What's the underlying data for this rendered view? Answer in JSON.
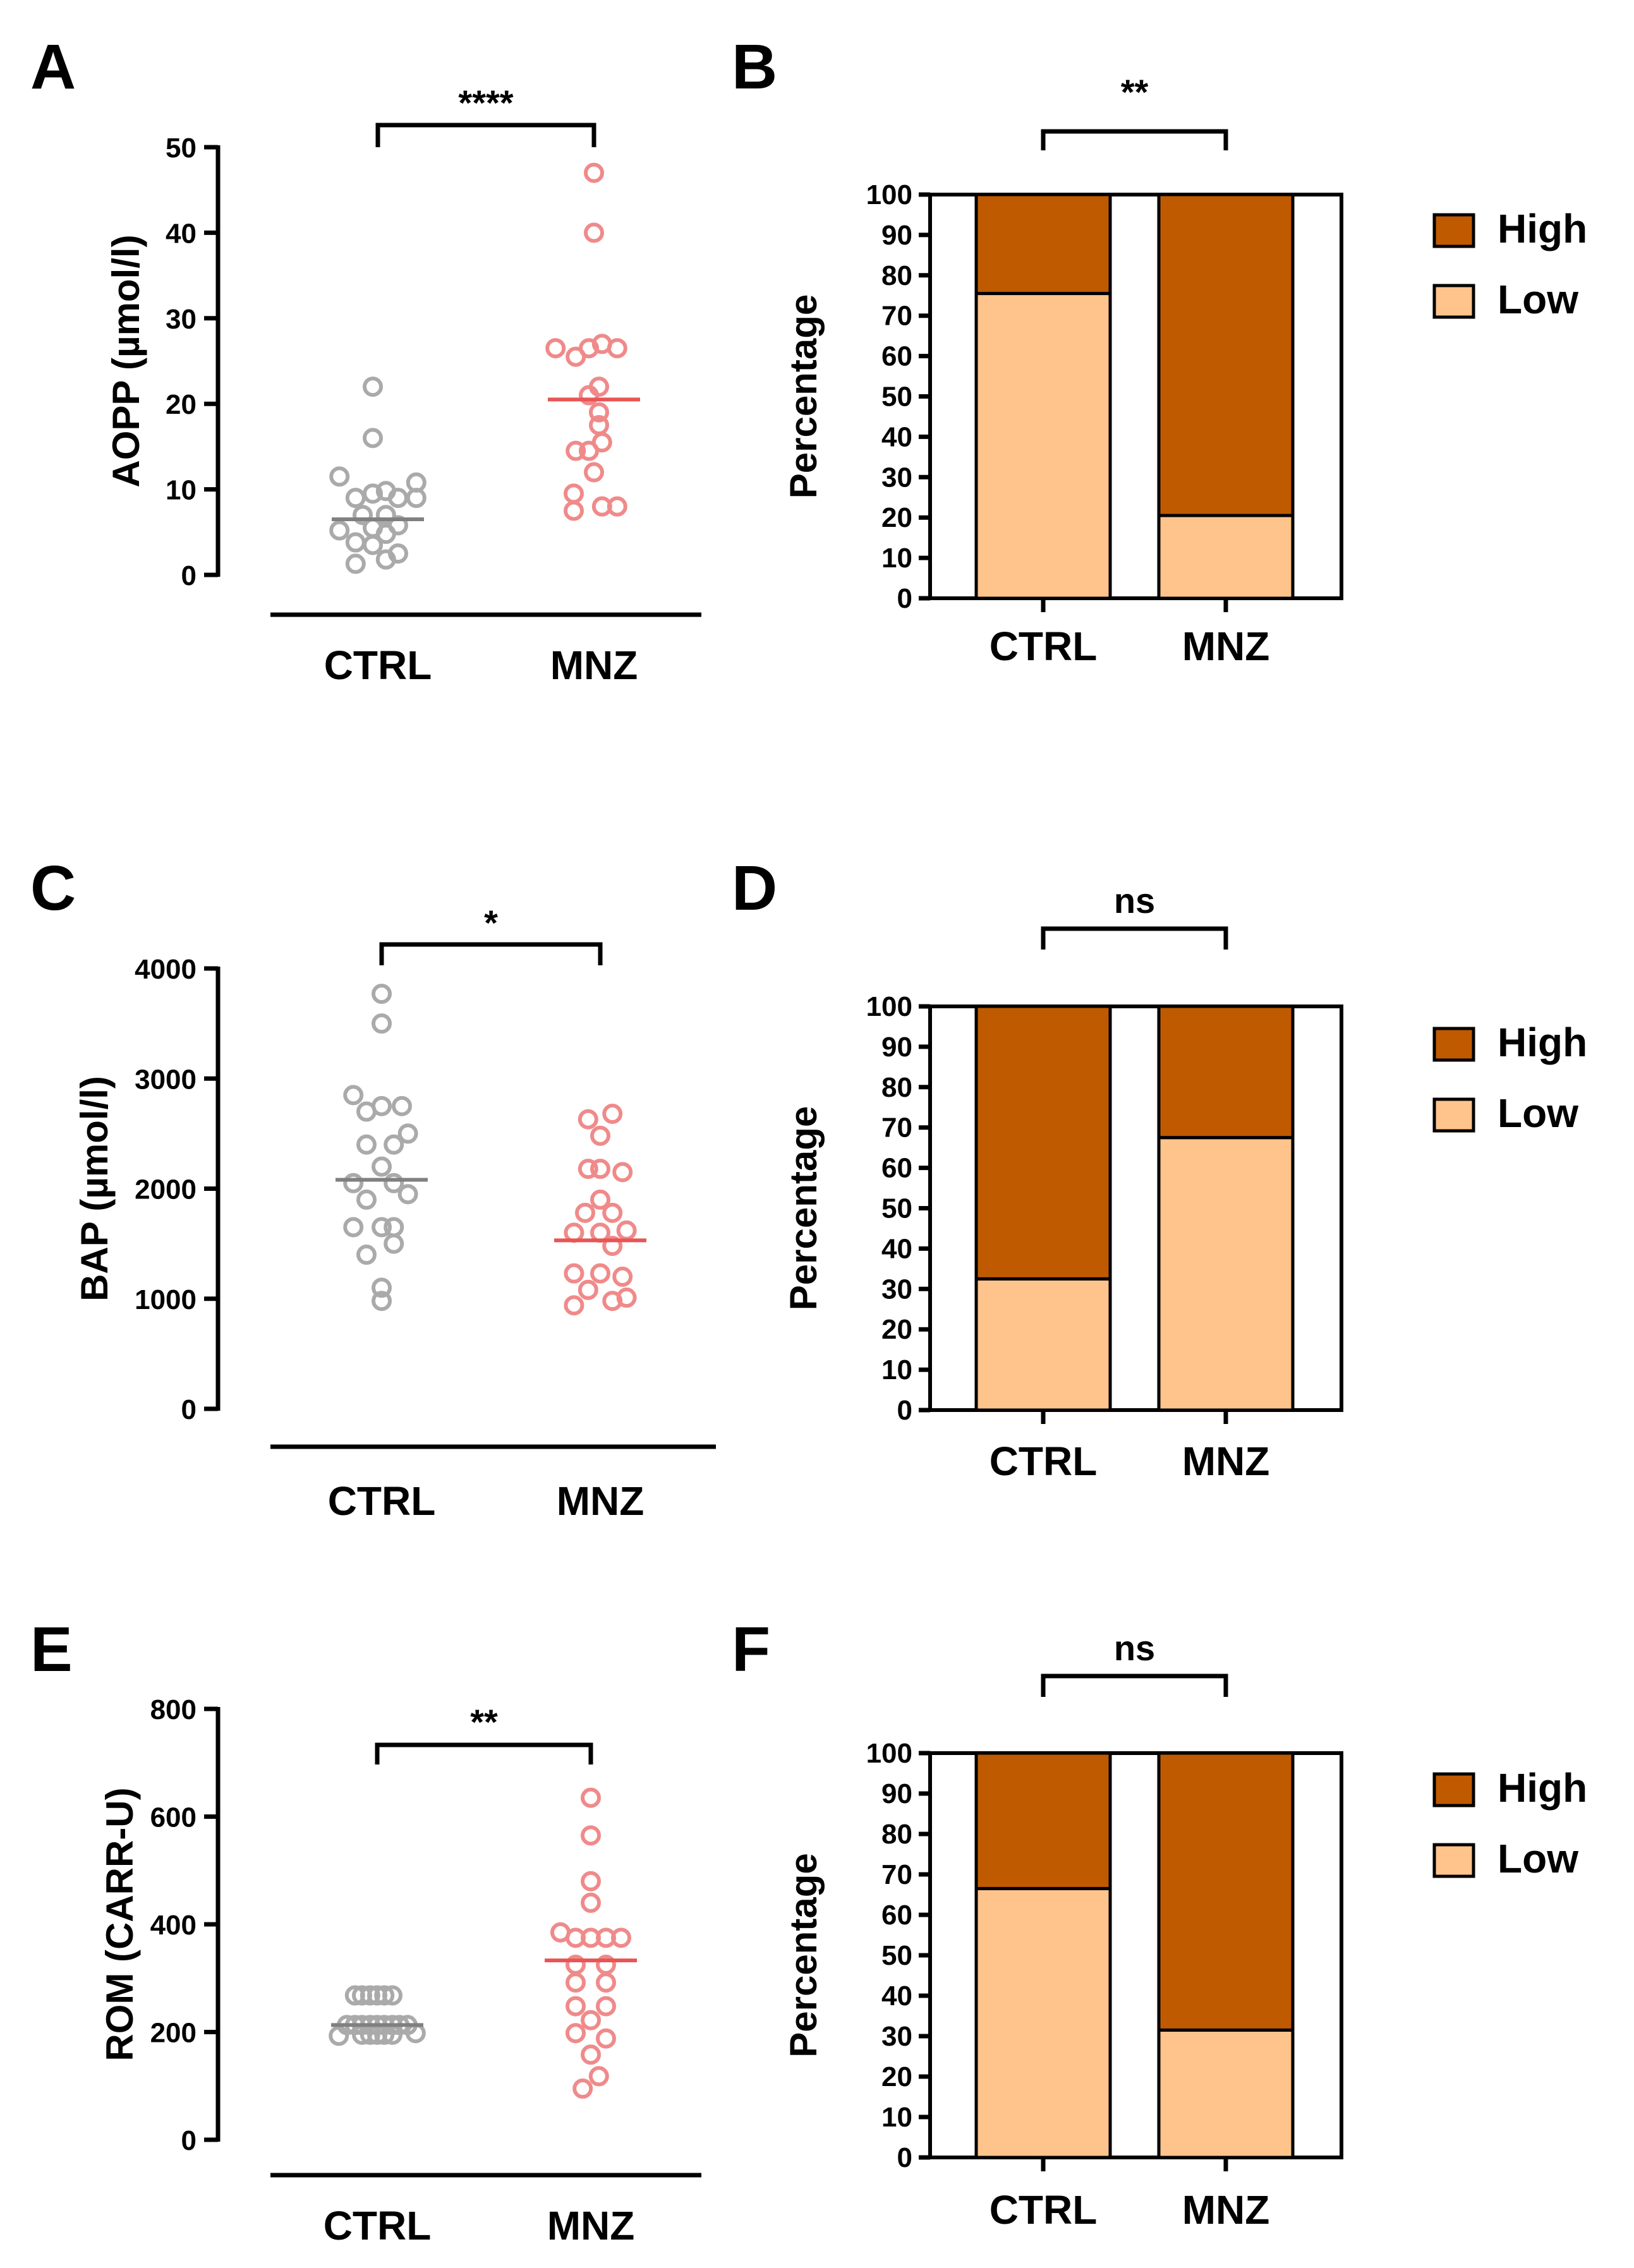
{
  "colors": {
    "ctrl_point": "#aaaaaa",
    "ctrl_median": "#808080",
    "mnz_point": "#f08a8a",
    "mnz_median": "#e85555",
    "high": "#bf5a00",
    "low": "#fec48c"
  },
  "chart_data": [
    {
      "panel": "A",
      "type": "scatter",
      "ylabel": "AOPP (µmol/l)",
      "ylim": [
        0,
        50
      ],
      "yticks": [
        "0",
        "10",
        "20",
        "30",
        "40",
        "50"
      ],
      "categories": [
        "CTRL",
        "MNZ"
      ],
      "significance": "****",
      "series": [
        {
          "name": "CTRL",
          "median": 6.5,
          "points": [
            [
              -0.38,
              5.2
            ],
            [
              -0.38,
              11.5
            ],
            [
              -0.22,
              1.3
            ],
            [
              -0.22,
              3.8
            ],
            [
              -0.22,
              9.0
            ],
            [
              -0.05,
              22.0
            ],
            [
              -0.05,
              16.0
            ],
            [
              -0.05,
              5.5
            ],
            [
              -0.05,
              9.5
            ],
            [
              -0.05,
              3.5
            ],
            [
              0.08,
              1.8
            ],
            [
              0.08,
              4.8
            ],
            [
              0.08,
              7.0
            ],
            [
              0.08,
              9.8
            ],
            [
              0.2,
              2.5
            ],
            [
              0.2,
              5.8
            ],
            [
              0.2,
              9.0
            ],
            [
              0.38,
              9.0
            ],
            [
              0.38,
              10.8
            ],
            [
              -0.15,
              7.0
            ]
          ]
        },
        {
          "name": "MNZ",
          "median": 20.5,
          "points": [
            [
              -0.38,
              26.5
            ],
            [
              -0.18,
              25.5
            ],
            [
              -0.05,
              26.5
            ],
            [
              0.08,
              27.0
            ],
            [
              0.23,
              26.5
            ],
            [
              0.0,
              47.0
            ],
            [
              0.0,
              40.0
            ],
            [
              -0.18,
              14.5
            ],
            [
              -0.05,
              14.5
            ],
            [
              0.08,
              15.5
            ],
            [
              0.0,
              12.0
            ],
            [
              0.05,
              17.5
            ],
            [
              -0.05,
              21.0
            ],
            [
              0.05,
              22.0
            ],
            [
              -0.2,
              9.5
            ],
            [
              -0.2,
              7.5
            ],
            [
              0.08,
              8.0
            ],
            [
              0.23,
              8.0
            ],
            [
              0.05,
              19.0
            ]
          ]
        }
      ]
    },
    {
      "panel": "B",
      "type": "bar",
      "stacked": true,
      "ylabel": "Percentage",
      "ylim": [
        0,
        100
      ],
      "yticks": [
        "0",
        "10",
        "20",
        "30",
        "40",
        "50",
        "60",
        "70",
        "80",
        "90",
        "100"
      ],
      "categories": [
        "CTRL",
        "MNZ"
      ],
      "significance": "**",
      "series": [
        {
          "name": "Low",
          "values": [
            75.5,
            20.5
          ]
        },
        {
          "name": "High",
          "values": [
            24.5,
            79.5
          ]
        }
      ],
      "legend": [
        "High",
        "Low"
      ]
    },
    {
      "panel": "C",
      "type": "scatter",
      "ylabel": "BAP (µmol/l)",
      "ylim": [
        0,
        4000
      ],
      "yticks": [
        "0",
        "1000",
        "2000",
        "3000",
        "4000"
      ],
      "categories": [
        "CTRL",
        "MNZ"
      ],
      "significance": "*",
      "series": [
        {
          "name": "CTRL",
          "median": 2080,
          "points": [
            [
              0.0,
              3770
            ],
            [
              0.0,
              3500
            ],
            [
              -0.28,
              2850
            ],
            [
              0.0,
              2750
            ],
            [
              0.2,
              2750
            ],
            [
              -0.15,
              2700
            ],
            [
              0.26,
              2500
            ],
            [
              -0.15,
              2400
            ],
            [
              0.12,
              2400
            ],
            [
              0.0,
              2200
            ],
            [
              -0.28,
              2050
            ],
            [
              0.12,
              2050
            ],
            [
              0.26,
              1950
            ],
            [
              -0.15,
              1900
            ],
            [
              0.0,
              1650
            ],
            [
              -0.28,
              1650
            ],
            [
              0.12,
              1650
            ],
            [
              -0.15,
              1400
            ],
            [
              0.12,
              1500
            ],
            [
              0.0,
              1100
            ],
            [
              0.0,
              980
            ]
          ]
        },
        {
          "name": "MNZ",
          "median": 1530,
          "points": [
            [
              -0.12,
              2630
            ],
            [
              0.12,
              2680
            ],
            [
              0.0,
              2480
            ],
            [
              -0.12,
              2180
            ],
            [
              0.0,
              2180
            ],
            [
              0.22,
              2150
            ],
            [
              0.0,
              1900
            ],
            [
              -0.15,
              1780
            ],
            [
              0.12,
              1780
            ],
            [
              0.26,
              1620
            ],
            [
              -0.26,
              1600
            ],
            [
              0.0,
              1600
            ],
            [
              0.12,
              1480
            ],
            [
              -0.26,
              1230
            ],
            [
              0.0,
              1230
            ],
            [
              0.22,
              1200
            ],
            [
              -0.26,
              940
            ],
            [
              -0.12,
              1080
            ],
            [
              0.12,
              980
            ],
            [
              0.26,
              1010
            ]
          ]
        }
      ]
    },
    {
      "panel": "D",
      "type": "bar",
      "stacked": true,
      "ylabel": "Percentage",
      "ylim": [
        0,
        100
      ],
      "yticks": [
        "0",
        "10",
        "20",
        "30",
        "40",
        "50",
        "60",
        "70",
        "80",
        "90",
        "100"
      ],
      "categories": [
        "CTRL",
        "MNZ"
      ],
      "significance": "ns",
      "series": [
        {
          "name": "Low",
          "values": [
            32.5,
            67.5
          ]
        },
        {
          "name": "High",
          "values": [
            67.5,
            32.5
          ]
        }
      ],
      "legend": [
        "High",
        "Low"
      ]
    },
    {
      "panel": "E",
      "type": "scatter",
      "ylabel": "ROM (CARR-U)",
      "ylim": [
        0,
        800
      ],
      "yticks": [
        "0",
        "200",
        "400",
        "600",
        "800"
      ],
      "categories": [
        "CTRL",
        "MNZ"
      ],
      "significance": "**",
      "series": [
        {
          "name": "CTRL",
          "median": 213,
          "points": [
            [
              -0.38,
              193
            ],
            [
              -0.3,
              213
            ],
            [
              -0.22,
              213
            ],
            [
              -0.15,
              213
            ],
            [
              -0.07,
              213
            ],
            [
              0.0,
              213
            ],
            [
              0.07,
              213
            ],
            [
              0.15,
              213
            ],
            [
              0.22,
              213
            ],
            [
              0.3,
              213
            ],
            [
              0.38,
              198
            ],
            [
              -0.22,
              268
            ],
            [
              -0.15,
              268
            ],
            [
              -0.07,
              268
            ],
            [
              0.0,
              268
            ],
            [
              0.07,
              268
            ],
            [
              0.15,
              268
            ],
            [
              -0.15,
              195
            ],
            [
              -0.07,
              195
            ],
            [
              0.0,
              195
            ],
            [
              0.07,
              195
            ],
            [
              0.15,
              195
            ]
          ]
        },
        {
          "name": "MNZ",
          "median": 333,
          "points": [
            [
              0.0,
              635
            ],
            [
              0.0,
              565
            ],
            [
              0.0,
              480
            ],
            [
              0.0,
              440
            ],
            [
              -0.3,
              385
            ],
            [
              -0.15,
              375
            ],
            [
              0.0,
              375
            ],
            [
              0.15,
              375
            ],
            [
              0.3,
              375
            ],
            [
              -0.15,
              325
            ],
            [
              0.15,
              325
            ],
            [
              -0.15,
              292
            ],
            [
              0.15,
              292
            ],
            [
              -0.15,
              248
            ],
            [
              0.0,
              222
            ],
            [
              0.15,
              248
            ],
            [
              -0.15,
              198
            ],
            [
              0.0,
              158
            ],
            [
              0.15,
              188
            ],
            [
              -0.08,
              95
            ],
            [
              0.08,
              118
            ]
          ]
        }
      ]
    },
    {
      "panel": "F",
      "type": "bar",
      "stacked": true,
      "ylabel": "Percentage",
      "ylim": [
        0,
        100
      ],
      "yticks": [
        "0",
        "10",
        "20",
        "30",
        "40",
        "50",
        "60",
        "70",
        "80",
        "90",
        "100"
      ],
      "categories": [
        "CTRL",
        "MNZ"
      ],
      "significance": "ns",
      "series": [
        {
          "name": "Low",
          "values": [
            66.5,
            31.5
          ]
        },
        {
          "name": "High",
          "values": [
            33.5,
            68.5
          ]
        }
      ],
      "legend": [
        "High",
        "Low"
      ]
    }
  ]
}
